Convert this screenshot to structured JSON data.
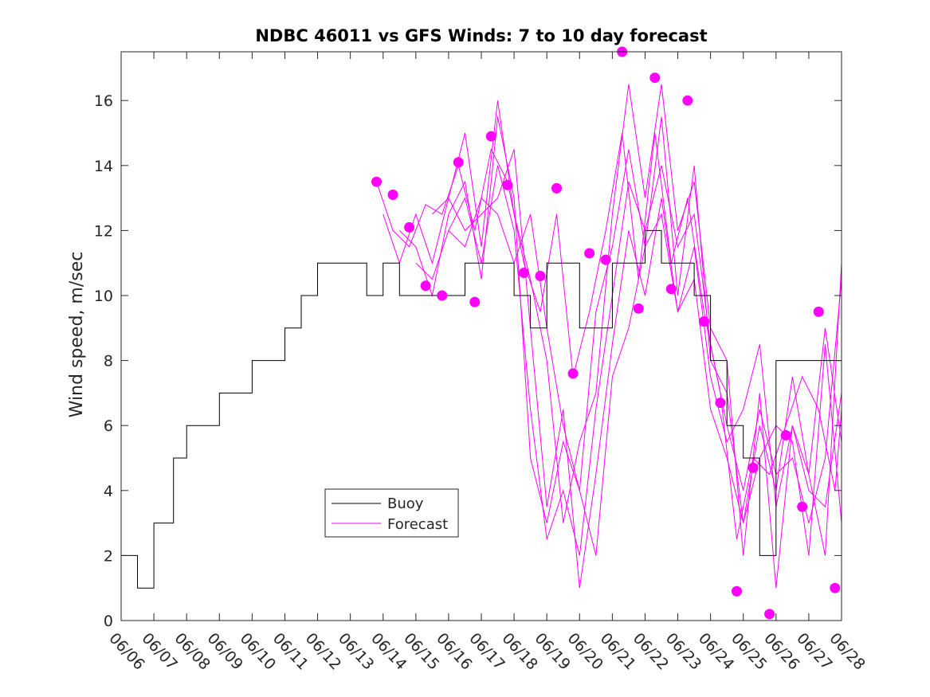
{
  "chart_data": {
    "type": "line",
    "title": "NDBC 46011 vs GFS Winds: 7 to 10 day forecast",
    "xlabel": "",
    "ylabel": "Wind speed, m/sec",
    "ylim": [
      0,
      17.5
    ],
    "yticks": [
      0,
      2,
      4,
      6,
      8,
      10,
      12,
      14,
      16
    ],
    "xlim": [
      0,
      22
    ],
    "xtick_labels": [
      "06/06",
      "06/07",
      "06/08",
      "06/09",
      "06/10",
      "06/11",
      "06/12",
      "06/13",
      "06/14",
      "06/15",
      "06/16",
      "06/17",
      "06/18",
      "06/19",
      "06/20",
      "06/21",
      "06/22",
      "06/23",
      "06/24",
      "06/25",
      "06/26",
      "06/27",
      "06/28"
    ],
    "grid": false,
    "legend": {
      "location": "lower-center-left",
      "entries": [
        "Buoy",
        "Forecast"
      ]
    },
    "colors": {
      "buoy": "#000000",
      "forecast": "#ff00ff"
    },
    "buoy": {
      "name": "Buoy",
      "x": [
        0,
        0.5,
        1,
        1.3,
        1.6,
        2,
        2.5,
        3,
        3.5,
        4,
        4.5,
        5,
        5.5,
        6,
        6.5,
        7,
        7.5,
        8,
        8.5,
        9,
        9.5,
        10,
        10.5,
        11,
        11.5,
        12,
        12.5,
        13,
        13.5,
        14,
        14.5,
        15,
        15.5,
        16,
        16.5,
        17,
        17.5,
        18,
        18.5,
        19,
        19.5,
        20,
        20.5,
        21,
        21.5,
        22
      ],
      "y": [
        1.5,
        0.5,
        2.5,
        2.5,
        4.5,
        5.5,
        5.5,
        6.5,
        6.5,
        7.5,
        8.0,
        8.5,
        10.0,
        10.5,
        10.5,
        11.0,
        10.0,
        10.5,
        9.5,
        9.5,
        10.0,
        9.5,
        10.5,
        10.5,
        11.0,
        10.0,
        9.0,
        11.0,
        10.5,
        9.0,
        8.5,
        10.5,
        11.0,
        12.0,
        11.0,
        11.0,
        10.0,
        7.5,
        5.5,
        4.5,
        1.5,
        7.5,
        7.5,
        8.0,
        8.0,
        8.0
      ]
    },
    "forecast_markers": {
      "name": "Forecast",
      "x": [
        7.8,
        8.3,
        8.8,
        9.3,
        9.8,
        10.3,
        10.8,
        11.3,
        11.8,
        12.3,
        12.8,
        13.3,
        13.8,
        14.3,
        14.8,
        15.3,
        15.8,
        16.3,
        16.8,
        17.3,
        17.8,
        18.3,
        18.8,
        19.3,
        19.8,
        20.3,
        20.8,
        21.3,
        21.8
      ],
      "y": [
        13.5,
        13.1,
        12.1,
        10.3,
        10.0,
        14.1,
        9.8,
        14.9,
        13.4,
        10.7,
        10.6,
        13.3,
        7.6,
        11.3,
        11.1,
        17.5,
        9.6,
        16.7,
        10.2,
        16.0,
        9.2,
        6.7,
        0.9,
        4.7,
        0.2,
        5.7,
        3.5,
        9.5,
        1.0
      ]
    },
    "forecast_runs": [
      {
        "x": [
          7.8,
          8.3,
          8.8,
          9.3,
          9.8,
          10.3,
          10.8,
          11.3,
          11.8,
          12.3,
          12.8,
          13.3,
          13.8,
          14.3,
          14.8,
          15.3,
          15.8,
          16.3,
          16.8,
          17.3,
          17.8,
          18.3,
          18.8,
          19.3,
          19.8,
          20.3,
          20.8,
          21.3,
          21.8,
          22.0
        ],
        "y": [
          13.5,
          12.0,
          11.5,
          12.8,
          12.5,
          14.0,
          12.0,
          14.5,
          13.5,
          11.0,
          9.5,
          12.5,
          7.5,
          9.5,
          12.0,
          15.0,
          10.5,
          15.0,
          11.0,
          13.0,
          9.5,
          7.0,
          2.5,
          5.0,
          4.5,
          6.0,
          7.5,
          6.5,
          4.0,
          6.5
        ]
      },
      {
        "x": [
          8.0,
          8.5,
          9.0,
          9.5,
          10.0,
          10.5,
          11.0,
          11.5,
          12.0,
          12.5,
          13.0,
          13.5,
          14.0,
          14.5,
          15.0,
          15.5,
          16.0,
          16.5,
          17.0,
          17.5,
          18.0,
          18.5,
          19.0,
          19.5,
          20.0,
          20.5,
          21.0,
          21.5,
          22.0
        ],
        "y": [
          12.5,
          11.0,
          12.5,
          11.0,
          13.0,
          15.0,
          11.5,
          16.0,
          12.5,
          10.5,
          8.0,
          3.0,
          5.5,
          7.0,
          12.5,
          16.5,
          13.0,
          16.5,
          12.0,
          13.5,
          9.0,
          8.0,
          2.0,
          7.0,
          1.0,
          6.0,
          4.5,
          9.0,
          5.5
        ]
      },
      {
        "x": [
          8.5,
          9.0,
          9.5,
          10.0,
          10.5,
          11.0,
          11.5,
          12.0,
          12.5,
          13.0,
          13.5,
          14.0,
          14.5,
          15.0,
          15.5,
          16.0,
          16.5,
          17.0,
          17.5,
          18.0,
          18.5,
          19.0,
          19.5,
          20.0,
          20.5,
          21.0,
          21.5,
          22.0
        ],
        "y": [
          12.0,
          11.5,
          10.0,
          12.5,
          13.5,
          10.5,
          15.5,
          13.0,
          5.0,
          3.0,
          5.5,
          4.0,
          9.5,
          11.5,
          14.5,
          11.5,
          15.5,
          10.0,
          14.0,
          8.0,
          7.0,
          3.0,
          5.0,
          6.0,
          5.5,
          2.0,
          8.5,
          3.0
        ]
      },
      {
        "x": [
          9.0,
          9.5,
          10.0,
          10.5,
          11.0,
          11.5,
          12.0,
          12.5,
          13.0,
          13.5,
          14.0,
          14.5,
          15.0,
          15.5,
          16.0,
          16.5,
          17.0,
          17.5,
          18.0,
          18.5,
          19.0,
          19.5,
          20.0,
          20.5,
          21.0,
          21.5,
          22.0
        ],
        "y": [
          11.0,
          10.5,
          12.0,
          13.0,
          11.0,
          14.0,
          12.0,
          6.5,
          2.5,
          4.0,
          2.0,
          6.5,
          10.0,
          13.5,
          12.0,
          14.0,
          11.5,
          12.5,
          8.5,
          6.0,
          4.0,
          6.5,
          4.5,
          5.0,
          3.0,
          5.0,
          10.5
        ]
      },
      {
        "x": [
          9.5,
          10.0,
          10.5,
          11.0,
          11.5,
          12.0,
          12.5,
          13.0,
          13.5,
          14.0,
          14.5,
          15.0,
          15.5,
          16.0,
          16.5,
          17.0,
          17.5,
          18.0,
          18.5,
          19.0,
          19.5,
          20.0,
          20.5,
          21.0,
          21.5,
          22.0
        ],
        "y": [
          12.5,
          13.0,
          12.0,
          12.5,
          13.0,
          14.5,
          9.0,
          3.5,
          6.5,
          1.0,
          4.5,
          8.5,
          12.0,
          10.0,
          13.0,
          9.5,
          11.5,
          7.5,
          5.5,
          6.5,
          8.5,
          3.5,
          6.0,
          4.0,
          3.5,
          7.0
        ]
      },
      {
        "x": [
          10.0,
          10.5,
          11.0,
          11.5,
          12.0,
          12.5,
          13.0,
          13.5,
          14.0,
          14.5,
          15.0,
          15.5,
          16.0,
          16.5,
          17.0,
          17.5,
          18.0,
          18.5,
          19.0,
          19.5,
          20.0,
          20.5,
          21.0,
          21.5,
          22.0
        ],
        "y": [
          12.0,
          11.5,
          13.0,
          12.5,
          11.0,
          12.5,
          9.0,
          6.0,
          4.0,
          2.0,
          7.5,
          9.0,
          11.5,
          12.5,
          9.5,
          10.5,
          6.5,
          5.0,
          3.0,
          6.0,
          4.0,
          7.5,
          4.5,
          2.0,
          11.0
        ]
      }
    ]
  }
}
